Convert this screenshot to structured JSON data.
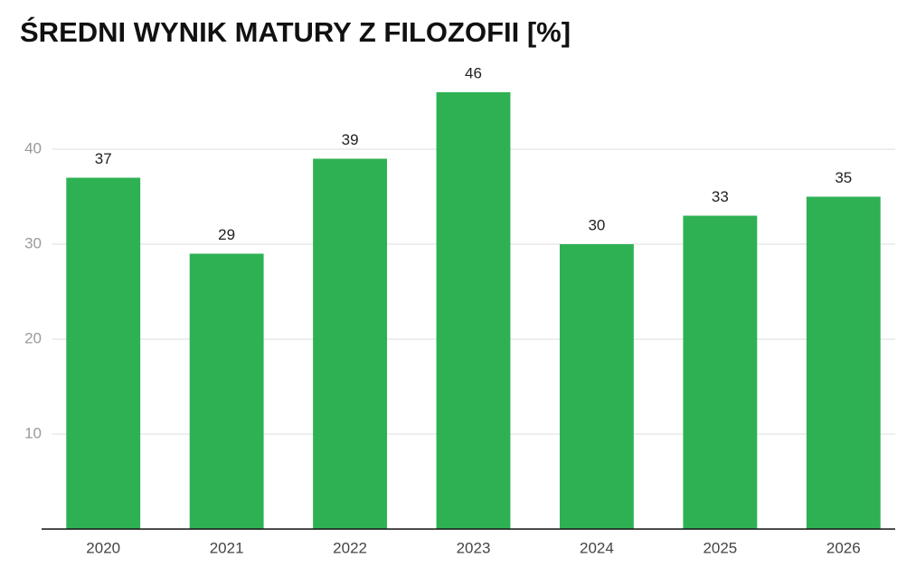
{
  "chart_data": {
    "type": "bar",
    "title": "ŚREDNI WYNIK MATURY Z FILOZOFII [%]",
    "categories": [
      "2020",
      "2021",
      "2022",
      "2023",
      "2024",
      "2025",
      "2026"
    ],
    "values": [
      37,
      29,
      39,
      46,
      30,
      33,
      35
    ],
    "color": "#2eb153",
    "ylim": [
      0,
      48
    ],
    "yticks": [
      10,
      20,
      30,
      40
    ],
    "grid": true
  }
}
